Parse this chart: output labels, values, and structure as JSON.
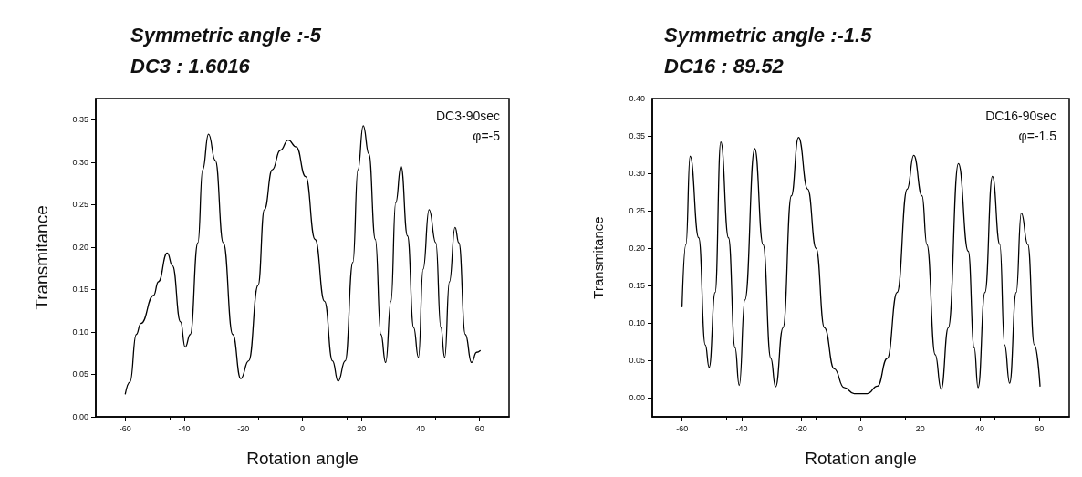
{
  "chart_data": [
    {
      "type": "line",
      "title": "Symmetric angle :-5",
      "subtitle": "DC3 : 1.6016",
      "xlabel": "Rotation angle",
      "ylabel": "Transmitance",
      "annotations": [
        "DC3-90sec",
        "φ=-5"
      ],
      "xlim": [
        -70,
        70
      ],
      "ylim": [
        0,
        0.375
      ],
      "xticks": [
        -60,
        -40,
        -20,
        0,
        20,
        40,
        60
      ],
      "yticks": [
        {
          "value": 0,
          "label": "0.00"
        },
        {
          "value": 0.05,
          "label": "0.05"
        },
        {
          "value": 0.1,
          "label": "0.10"
        },
        {
          "value": 0.15,
          "label": "0.15"
        },
        {
          "value": 0.2,
          "label": "0.20"
        },
        {
          "value": 0.25,
          "label": "0.25"
        },
        {
          "value": 0.3,
          "label": "0.30"
        },
        {
          "value": 0.35,
          "label": "0.35"
        }
      ],
      "grid": false,
      "marker": "none",
      "line_style": "solid",
      "series": [
        {
          "color": "#000000",
          "x": [
            -60,
            -58.4,
            -56.3,
            -54.7,
            -50.4,
            -48.8,
            -45.8,
            -44,
            -41.3,
            -39.7,
            -38,
            -35.4,
            -33.8,
            -31.8,
            -29.5,
            -26.8,
            -23.6,
            -20.9,
            -18.2,
            -15,
            -12.9,
            -10.2,
            -7.5,
            -4.8,
            -2.1,
            1.1,
            4.3,
            7.5,
            10.2,
            12.1,
            14.5,
            17.1,
            18.8,
            20.6,
            22.5,
            24.7,
            26.6,
            28.2,
            30,
            31.6,
            33.4,
            35.6,
            37.7,
            39.3,
            40.9,
            42.9,
            45.2,
            46.9,
            48.2,
            49.8,
            51.7,
            53,
            55.2,
            57.3,
            59,
            60.2
          ],
          "values": [
            0.027,
            0.041,
            0.097,
            0.11,
            0.143,
            0.159,
            0.193,
            0.178,
            0.112,
            0.082,
            0.097,
            0.205,
            0.291,
            0.333,
            0.302,
            0.205,
            0.097,
            0.045,
            0.066,
            0.155,
            0.244,
            0.291,
            0.314,
            0.326,
            0.318,
            0.283,
            0.209,
            0.136,
            0.066,
            0.042,
            0.066,
            0.182,
            0.291,
            0.343,
            0.31,
            0.209,
            0.097,
            0.064,
            0.136,
            0.252,
            0.295,
            0.213,
            0.105,
            0.07,
            0.174,
            0.244,
            0.205,
            0.105,
            0.07,
            0.159,
            0.223,
            0.205,
            0.097,
            0.064,
            0.076,
            0.078
          ]
        }
      ]
    },
    {
      "type": "line",
      "title": "Symmetric angle :-1.5",
      "subtitle": "DC16 : 89.52",
      "xlabel": "Rotation angle",
      "ylabel": "Transmitance",
      "annotations": [
        "DC16-90sec",
        "φ=-1.5"
      ],
      "xlim": [
        -70,
        70
      ],
      "ylim": [
        -0.025,
        0.4
      ],
      "xticks": [
        -60,
        -40,
        -20,
        0,
        20,
        40,
        60
      ],
      "yticks": [
        {
          "value": 0,
          "label": "0.00"
        },
        {
          "value": 0.05,
          "label": "0.05"
        },
        {
          "value": 0.1,
          "label": "0.10"
        },
        {
          "value": 0.15,
          "label": "0.15"
        },
        {
          "value": 0.2,
          "label": "0.20"
        },
        {
          "value": 0.25,
          "label": "0.25"
        },
        {
          "value": 0.3,
          "label": "0.30"
        },
        {
          "value": 0.35,
          "label": "0.35"
        },
        {
          "value": 0.4,
          "label": "0.40"
        }
      ],
      "grid": false,
      "marker": "none",
      "line_style": "solid",
      "series": [
        {
          "color": "#000000",
          "x": [
            -60,
            -58.7,
            -57.3,
            -54.4,
            -52.2,
            -50.9,
            -48.9,
            -47,
            -44.4,
            -42.2,
            -40.8,
            -38.9,
            -35.6,
            -32.8,
            -30.2,
            -28.6,
            -26.1,
            -23.3,
            -20.9,
            -17.8,
            -15,
            -12.2,
            -8.9,
            -5.6,
            -2.2,
            2.2,
            5.6,
            8.9,
            12.2,
            15.6,
            17.8,
            20.6,
            22.2,
            25,
            27,
            29.4,
            32.8,
            36.1,
            38.1,
            39.4,
            41.7,
            44.2,
            46.7,
            48.3,
            50,
            52.2,
            53.9,
            56.1,
            58.3,
            60.2
          ],
          "values": [
            0.122,
            0.205,
            0.323,
            0.214,
            0.071,
            0.041,
            0.141,
            0.342,
            0.214,
            0.067,
            0.017,
            0.131,
            0.333,
            0.205,
            0.053,
            0.015,
            0.094,
            0.27,
            0.348,
            0.279,
            0.2,
            0.094,
            0.039,
            0.014,
            0.006,
            0.006,
            0.016,
            0.053,
            0.141,
            0.279,
            0.324,
            0.27,
            0.205,
            0.058,
            0.012,
            0.094,
            0.313,
            0.196,
            0.067,
            0.014,
            0.141,
            0.296,
            0.205,
            0.071,
            0.02,
            0.141,
            0.247,
            0.205,
            0.071,
            0.016
          ]
        }
      ]
    }
  ]
}
